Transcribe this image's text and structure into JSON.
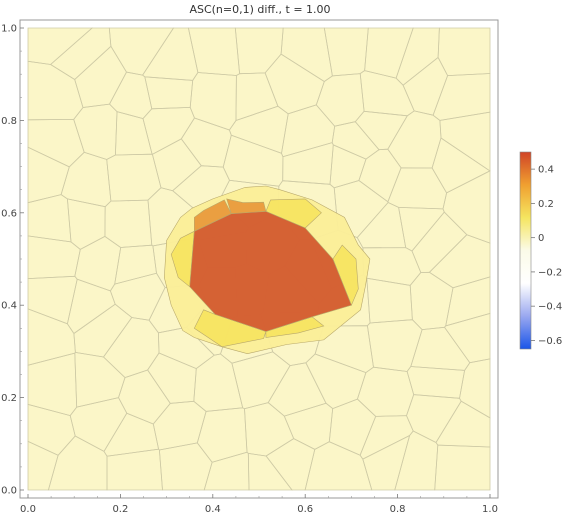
{
  "title": "ASC(n=0,1) diff., t = 1.00",
  "chart_data": {
    "type": "heatmap",
    "title": "ASC(n=0,1) diff., t = 1.00",
    "xlabel": "",
    "ylabel": "",
    "xlim": [
      0,
      1
    ],
    "ylim": [
      0,
      1
    ],
    "x_ticks": [
      "0.0",
      "0.2",
      "0.4",
      "0.6",
      "0.8",
      "1.0"
    ],
    "y_ticks": [
      "0.0",
      "0.2",
      "0.4",
      "0.6",
      "0.8",
      "1.0"
    ],
    "mesh": "Voronoi cell tessellation",
    "background_value": 0.0,
    "colorbar": {
      "range": [
        -0.65,
        0.5
      ],
      "ticks": [
        "0.4",
        "0.2",
        "0",
        "−0.2",
        "−0.4",
        "−0.6"
      ],
      "tick_values": [
        0.4,
        0.2,
        0,
        -0.2,
        -0.4,
        -0.6
      ],
      "placement": "right",
      "colors": [
        "#d04427",
        "#f0a030",
        "#f5e560",
        "#fbfbe8",
        "#ffffff",
        "#9aa8f0",
        "#1a55e8"
      ]
    },
    "regions": [
      {
        "name": "core",
        "value": 0.42,
        "color": "#d35a2e",
        "polygon": [
          [
            0.515,
            0.603
          ],
          [
            0.6,
            0.567
          ],
          [
            0.66,
            0.5
          ],
          [
            0.7,
            0.4
          ],
          [
            0.615,
            0.375
          ],
          [
            0.515,
            0.343
          ],
          [
            0.405,
            0.38
          ],
          [
            0.35,
            0.44
          ],
          [
            0.36,
            0.56
          ],
          [
            0.44,
            0.598
          ]
        ]
      },
      {
        "name": "ring-cell-nw",
        "value": 0.26,
        "color": "#e99a3c",
        "polygon": [
          [
            0.36,
            0.56
          ],
          [
            0.44,
            0.598
          ],
          [
            0.425,
            0.628
          ],
          [
            0.38,
            0.605
          ],
          [
            0.36,
            0.59
          ]
        ]
      },
      {
        "name": "ring-cell-n",
        "value": 0.26,
        "color": "#e99a3c",
        "polygon": [
          [
            0.44,
            0.598
          ],
          [
            0.515,
            0.603
          ],
          [
            0.51,
            0.623
          ],
          [
            0.465,
            0.622
          ],
          [
            0.43,
            0.63
          ]
        ]
      },
      {
        "name": "ring-cell-s",
        "value": 0.18,
        "color": "#f7e461",
        "polygon": [
          [
            0.405,
            0.38
          ],
          [
            0.515,
            0.343
          ],
          [
            0.51,
            0.328
          ],
          [
            0.42,
            0.31
          ],
          [
            0.39,
            0.33
          ],
          [
            0.36,
            0.35
          ],
          [
            0.38,
            0.39
          ]
        ]
      },
      {
        "name": "ring-cell-se",
        "value": 0.18,
        "color": "#f7e461",
        "polygon": [
          [
            0.515,
            0.343
          ],
          [
            0.615,
            0.375
          ],
          [
            0.64,
            0.355
          ],
          [
            0.585,
            0.34
          ],
          [
            0.515,
            0.33
          ]
        ]
      },
      {
        "name": "ring-cell-w",
        "value": 0.12,
        "color": "#f7e461",
        "polygon": [
          [
            0.35,
            0.44
          ],
          [
            0.36,
            0.56
          ],
          [
            0.33,
            0.545
          ],
          [
            0.31,
            0.51
          ],
          [
            0.325,
            0.46
          ]
        ]
      },
      {
        "name": "ring-cell-e",
        "value": 0.14,
        "color": "#f7e461",
        "polygon": [
          [
            0.66,
            0.5
          ],
          [
            0.7,
            0.4
          ],
          [
            0.715,
            0.435
          ],
          [
            0.71,
            0.5
          ],
          [
            0.68,
            0.53
          ]
        ]
      },
      {
        "name": "ring-cell-ne",
        "value": 0.14,
        "color": "#f7e461",
        "polygon": [
          [
            0.515,
            0.603
          ],
          [
            0.6,
            0.567
          ],
          [
            0.635,
            0.6
          ],
          [
            0.6,
            0.63
          ],
          [
            0.525,
            0.628
          ]
        ]
      },
      {
        "name": "ring-outer",
        "value": 0.08,
        "color": "#fbee98",
        "polygon": [
          [
            0.4,
            0.63
          ],
          [
            0.47,
            0.655
          ],
          [
            0.515,
            0.658
          ],
          [
            0.545,
            0.65
          ],
          [
            0.615,
            0.628
          ],
          [
            0.685,
            0.59
          ],
          [
            0.715,
            0.53
          ],
          [
            0.74,
            0.5
          ],
          [
            0.73,
            0.44
          ],
          [
            0.72,
            0.39
          ],
          [
            0.64,
            0.325
          ],
          [
            0.56,
            0.315
          ],
          [
            0.475,
            0.295
          ],
          [
            0.42,
            0.31
          ],
          [
            0.36,
            0.33
          ],
          [
            0.335,
            0.345
          ],
          [
            0.31,
            0.4
          ],
          [
            0.295,
            0.46
          ],
          [
            0.3,
            0.54
          ],
          [
            0.33,
            0.59
          ],
          [
            0.355,
            0.61
          ]
        ]
      }
    ]
  }
}
